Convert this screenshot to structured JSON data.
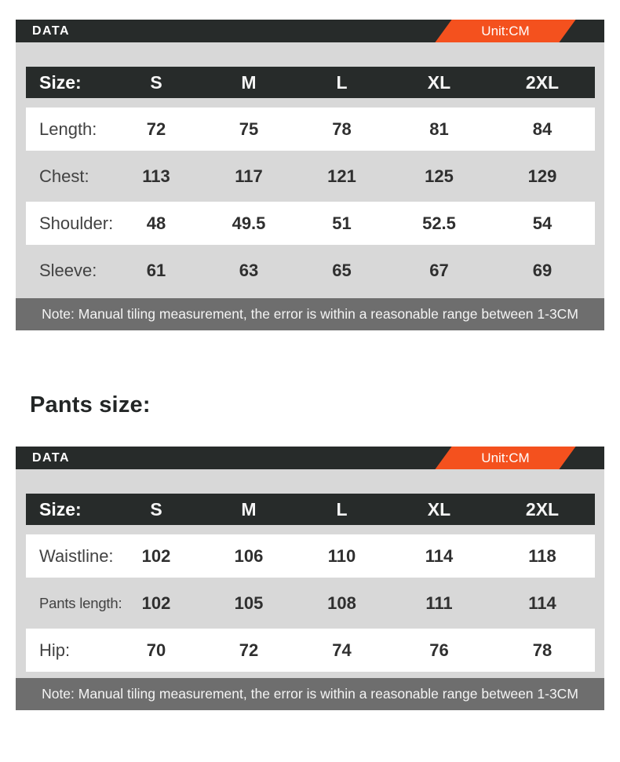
{
  "colors": {
    "accent_orange": "#f4511e",
    "bar_dark": "#272b2a",
    "body_gray": "#d8d8d8",
    "note_gray": "#6e6e6e"
  },
  "heading": {
    "pants_size": "Pants size:"
  },
  "tables": [
    {
      "title": "DATA",
      "unit": "Unit:CM",
      "size_label": "Size:",
      "sizes": [
        "S",
        "M",
        "L",
        "XL",
        "2XL"
      ],
      "rows": [
        {
          "label": "Length:",
          "values": [
            "72",
            "75",
            "78",
            "81",
            "84"
          ]
        },
        {
          "label": "Chest:",
          "values": [
            "113",
            "117",
            "121",
            "125",
            "129"
          ]
        },
        {
          "label": "Shoulder:",
          "values": [
            "48",
            "49.5",
            "51",
            "52.5",
            "54"
          ]
        },
        {
          "label": "Sleeve:",
          "values": [
            "61",
            "63",
            "65",
            "67",
            "69"
          ]
        }
      ],
      "note": "Note: Manual tiling measurement, the error is within a reasonable range between 1-3CM"
    },
    {
      "title": "DATA",
      "unit": "Unit:CM",
      "size_label": "Size:",
      "sizes": [
        "S",
        "M",
        "L",
        "XL",
        "2XL"
      ],
      "rows": [
        {
          "label": "Waistline:",
          "values": [
            "102",
            "106",
            "110",
            "114",
            "118"
          ]
        },
        {
          "label": "Pants length:",
          "values": [
            "102",
            "105",
            "108",
            "111",
            "114"
          ]
        },
        {
          "label": "Hip:",
          "values": [
            "70",
            "72",
            "74",
            "76",
            "78"
          ]
        }
      ],
      "note": "Note: Manual tiling measurement, the error is within a reasonable range between 1-3CM"
    }
  ],
  "chart_data": [
    {
      "type": "table",
      "title": "DATA",
      "unit": "CM",
      "columns": [
        "Size",
        "S",
        "M",
        "L",
        "XL",
        "2XL"
      ],
      "rows": [
        [
          "Length",
          72,
          75,
          78,
          81,
          84
        ],
        [
          "Chest",
          113,
          117,
          121,
          125,
          129
        ],
        [
          "Shoulder",
          48,
          49.5,
          51,
          52.5,
          54
        ],
        [
          "Sleeve",
          61,
          63,
          65,
          67,
          69
        ]
      ],
      "note": "Note: Manual tiling measurement, the error is within a reasonable range between 1-3CM"
    },
    {
      "type": "table",
      "title": "DATA",
      "unit": "CM",
      "columns": [
        "Size",
        "S",
        "M",
        "L",
        "XL",
        "2XL"
      ],
      "rows": [
        [
          "Waistline",
          102,
          106,
          110,
          114,
          118
        ],
        [
          "Pants length",
          102,
          105,
          108,
          111,
          114
        ],
        [
          "Hip",
          70,
          72,
          74,
          76,
          78
        ]
      ],
      "note": "Note: Manual tiling measurement, the error is within a reasonable range between 1-3CM"
    }
  ]
}
